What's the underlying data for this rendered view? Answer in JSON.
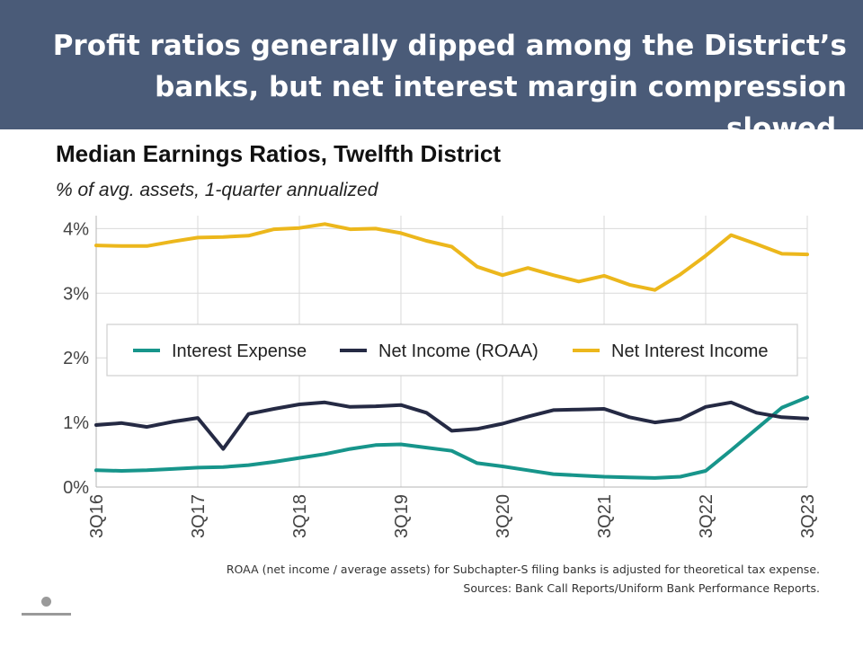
{
  "slide": {
    "headline": "Profit ratios generally dipped among the District’s banks, but net interest margin compression slowed.",
    "footnote_1": "ROAA (net income / average assets) for Subchapter-S filing banks is adjusted for theoretical tax expense.",
    "footnote_2": "Sources: Bank Call Reports/Uniform Bank Performance Reports.",
    "colors": {
      "banner": "#4a5b78",
      "banner_text": "#ffffff"
    }
  },
  "chart_data": {
    "type": "line",
    "title": "Median Earnings Ratios, Twelfth District",
    "subtitle": "% of avg. assets, 1-quarter annualized",
    "x": [
      "3Q16",
      "4Q16",
      "1Q17",
      "2Q17",
      "3Q17",
      "4Q17",
      "1Q18",
      "2Q18",
      "3Q18",
      "4Q18",
      "1Q19",
      "2Q19",
      "3Q19",
      "4Q19",
      "1Q20",
      "2Q20",
      "3Q20",
      "4Q20",
      "1Q21",
      "2Q21",
      "3Q21",
      "4Q21",
      "1Q22",
      "2Q22",
      "3Q22",
      "4Q22",
      "1Q23",
      "2Q23",
      "3Q23"
    ],
    "x_tick_labels": [
      "3Q16",
      "3Q17",
      "3Q18",
      "3Q19",
      "3Q20",
      "3Q21",
      "3Q22",
      "3Q23"
    ],
    "y_tick_labels": [
      "0%",
      "1%",
      "2%",
      "3%",
      "4%"
    ],
    "ylim": [
      0,
      4.2
    ],
    "grid": true,
    "legend_position": "center",
    "series": [
      {
        "name": "Interest Expense",
        "color": "#17958b",
        "values": [
          0.26,
          0.25,
          0.26,
          0.28,
          0.3,
          0.31,
          0.34,
          0.39,
          0.45,
          0.51,
          0.59,
          0.65,
          0.66,
          0.61,
          0.56,
          0.37,
          0.32,
          0.26,
          0.2,
          0.18,
          0.16,
          0.15,
          0.14,
          0.16,
          0.25,
          0.57,
          0.9,
          1.23,
          1.39
        ]
      },
      {
        "name": "Net Income (ROAA)",
        "color": "#252a44",
        "values": [
          0.96,
          0.99,
          0.93,
          1.01,
          1.07,
          0.59,
          1.13,
          1.21,
          1.28,
          1.31,
          1.24,
          1.25,
          1.27,
          1.15,
          0.87,
          0.9,
          0.98,
          1.09,
          1.19,
          1.2,
          1.21,
          1.08,
          1.0,
          1.05,
          1.24,
          1.31,
          1.15,
          1.08,
          1.06
        ]
      },
      {
        "name": "Net Interest Income",
        "color": "#ecb71c",
        "values": [
          3.74,
          3.73,
          3.73,
          3.8,
          3.86,
          3.87,
          3.89,
          3.99,
          4.01,
          4.07,
          3.99,
          4.0,
          3.93,
          3.81,
          3.72,
          3.41,
          3.28,
          3.39,
          3.28,
          3.18,
          3.27,
          3.13,
          3.05,
          3.29,
          3.58,
          3.9,
          3.76,
          3.61,
          3.6
        ]
      }
    ]
  }
}
